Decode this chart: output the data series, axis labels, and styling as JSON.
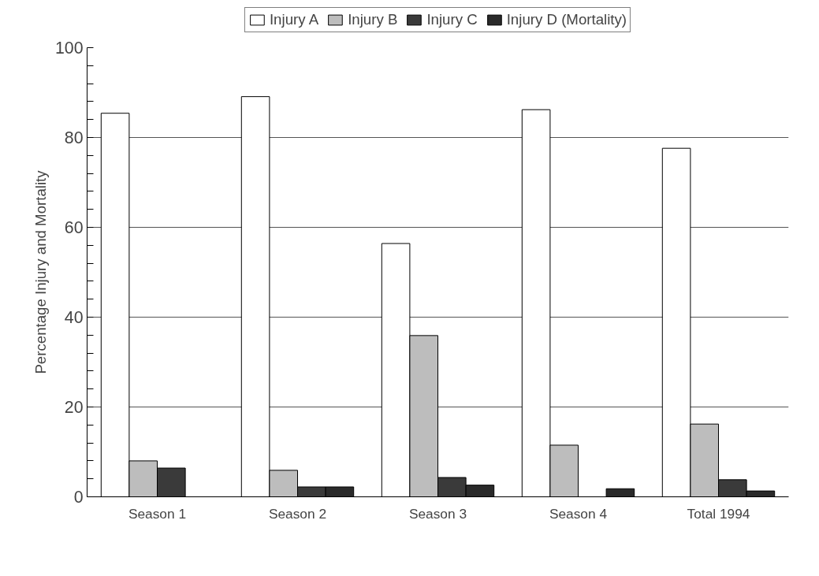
{
  "chart_data": {
    "type": "bar",
    "ylabel": "Percentage Injury and Mortality",
    "categories": [
      "Season 1",
      "Season 2",
      "Season 3",
      "Season 4",
      "Total 1994"
    ],
    "series": [
      {
        "name": "Injury A",
        "color": "#ffffff",
        "values": [
          85.4,
          89.1,
          56.4,
          86.2,
          77.6
        ]
      },
      {
        "name": "Injury B",
        "color": "#bdbdbd",
        "values": [
          8.0,
          5.9,
          35.9,
          11.5,
          16.2
        ]
      },
      {
        "name": "Injury C",
        "color": "#3a3a3a",
        "values": [
          6.4,
          2.2,
          4.3,
          0,
          3.8
        ]
      },
      {
        "name": "Injury D (Mortality)",
        "color": "#2a2a2a",
        "values": [
          0,
          2.2,
          2.6,
          1.8,
          1.3
        ]
      }
    ],
    "ylim": [
      0,
      100
    ],
    "yticks": [
      0,
      {
        "value": 4,
        "label": null
      },
      {
        "value": 8,
        "label": null
      },
      {
        "value": 12,
        "label": null
      },
      {
        "value": 16,
        "label": null
      },
      20,
      {
        "value": 24,
        "label": null
      },
      {
        "value": 28,
        "label": null
      },
      {
        "value": 32,
        "label": null
      },
      {
        "value": 36,
        "label": null
      },
      40,
      {
        "value": 44,
        "label": null
      },
      {
        "value": 48,
        "label": null
      },
      {
        "value": 52,
        "label": null
      },
      {
        "value": 56,
        "label": null
      },
      60,
      {
        "value": 64,
        "label": null
      },
      {
        "value": 68,
        "label": null
      },
      {
        "value": 72,
        "label": null
      },
      {
        "value": 76,
        "label": null
      },
      80,
      {
        "value": 84,
        "label": null
      },
      {
        "value": 88,
        "label": null
      },
      {
        "value": 92,
        "label": null
      },
      {
        "value": 96,
        "label": null
      },
      100
    ],
    "grid": "y",
    "legend": "top"
  }
}
